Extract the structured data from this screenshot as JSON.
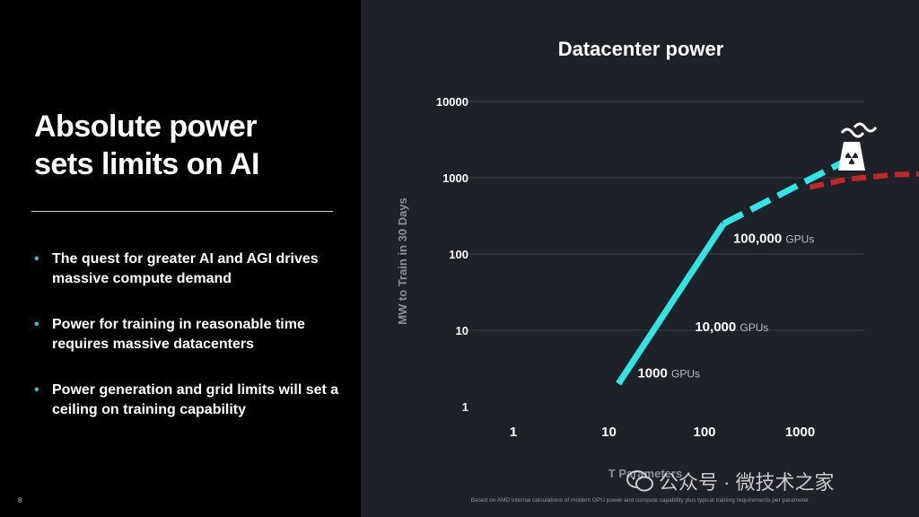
{
  "slide": {
    "title_lines": [
      "Absolute power",
      "sets limits on AI"
    ],
    "bullets": [
      "The quest for greater AI and AGI drives massive compute demand",
      "Power for training in reasonable time requires massive datacenters",
      "Power generation and grid limits will set a ceiling on training capability"
    ],
    "page_number": "8",
    "footnote": "Based on AMD internal calculations of modern GPU power and compute capability plus typical training requirements per parameter",
    "watermark": "公众号 · 微技术之家"
  },
  "colors": {
    "accent": "#3fb8c6",
    "line": "#2ee6e6",
    "ceiling": "#c0272d",
    "panel": "#1e2128"
  },
  "icons": {
    "plant": "nuclear-power-plant-icon",
    "watermark": "wechat-icon"
  },
  "chart_data": {
    "type": "line",
    "title": "Datacenter power",
    "xlabel": "T Parameters",
    "ylabel": "MW to Train in 30 Days",
    "x_scale": "log",
    "y_scale": "log",
    "xlim": [
      1,
      10000
    ],
    "ylim": [
      1,
      10000
    ],
    "x_ticks": [
      1,
      10,
      100,
      1000
    ],
    "x_tick_labels": [
      "1",
      "10",
      "100",
      "1000"
    ],
    "y_ticks": [
      1,
      10,
      100,
      1000,
      10000
    ],
    "y_tick_labels": [
      "1",
      "10",
      "100",
      "1000",
      "10000"
    ],
    "grid": true,
    "series": [
      {
        "style": "solid",
        "points": [
          [
            1.1,
            2.0
          ],
          [
            2.2,
            250
          ]
        ]
      },
      {
        "style": "dashed",
        "points": [
          [
            2.2,
            250
          ],
          [
            3.6,
            2000
          ]
        ]
      },
      {
        "style": "dashed-red",
        "points": [
          [
            3.1,
            750
          ],
          [
            3.5,
            960
          ],
          [
            4.0,
            1100
          ],
          [
            4.6,
            1150
          ]
        ]
      }
    ],
    "annotations": [
      {
        "value": "1000",
        "unit": "GPUs",
        "at": [
          1.3,
          2.4
        ]
      },
      {
        "value": "10,000",
        "unit": "GPUs",
        "at": [
          1.9,
          9.7
        ]
      },
      {
        "value": "100,000",
        "unit": "GPUs",
        "at": [
          2.3,
          140
        ]
      }
    ]
  }
}
